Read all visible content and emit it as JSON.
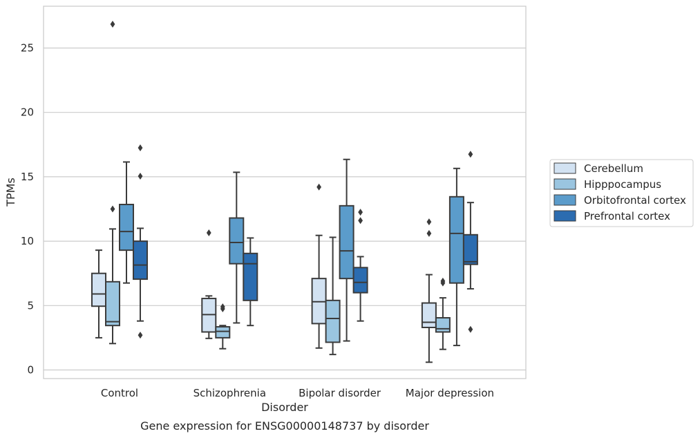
{
  "chart_data": {
    "type": "box",
    "title": "",
    "caption": "Gene expression for ENSG00000148737 by disorder",
    "xlabel": "Disorder",
    "ylabel": "TPMs",
    "ylim": [
      -0.6,
      28
    ],
    "yticks": [
      0,
      5,
      10,
      15,
      20,
      25
    ],
    "grid": "horizontal",
    "legend_position": "right",
    "categories": [
      "Control",
      "Schizophrenia",
      "Bipolar disorder",
      "Major depression"
    ],
    "series": [
      {
        "name": "Cerebellum",
        "color": "#d2e2f2",
        "boxes": [
          {
            "whisker_low": 2.5,
            "q1": 4.95,
            "median": 5.9,
            "q3": 7.5,
            "whisker_high": 9.3,
            "outliers": []
          },
          {
            "whisker_low": 2.45,
            "q1": 2.95,
            "median": 4.3,
            "q3": 5.55,
            "whisker_high": 5.75,
            "outliers": [
              10.65
            ]
          },
          {
            "whisker_low": 1.7,
            "q1": 3.6,
            "median": 5.3,
            "q3": 7.1,
            "whisker_high": 10.45,
            "outliers": [
              14.2
            ]
          },
          {
            "whisker_low": 0.6,
            "q1": 3.3,
            "median": 3.7,
            "q3": 5.2,
            "whisker_high": 7.4,
            "outliers": [
              10.6,
              11.5
            ]
          }
        ]
      },
      {
        "name": "Hipppocampus",
        "color": "#9ac5e0",
        "boxes": [
          {
            "whisker_low": 2.05,
            "q1": 3.45,
            "median": 3.75,
            "q3": 6.85,
            "whisker_high": 10.95,
            "outliers": [
              12.5,
              26.85
            ]
          },
          {
            "whisker_low": 1.65,
            "q1": 2.5,
            "median": 3.0,
            "q3": 3.35,
            "whisker_high": 3.45,
            "outliers": [
              4.75,
              4.9
            ]
          },
          {
            "whisker_low": 1.2,
            "q1": 2.15,
            "median": 4.0,
            "q3": 5.4,
            "whisker_high": 10.3,
            "outliers": []
          },
          {
            "whisker_low": 1.6,
            "q1": 2.95,
            "median": 3.2,
            "q3": 4.05,
            "whisker_high": 5.6,
            "outliers": [
              6.75,
              6.9
            ]
          }
        ]
      },
      {
        "name": "Orbitofrontal cortex",
        "color": "#5b9ccb",
        "boxes": [
          {
            "whisker_low": 6.75,
            "q1": 9.3,
            "median": 10.75,
            "q3": 12.85,
            "whisker_high": 16.15,
            "outliers": []
          },
          {
            "whisker_low": 3.65,
            "q1": 8.25,
            "median": 9.9,
            "q3": 11.8,
            "whisker_high": 15.35,
            "outliers": []
          },
          {
            "whisker_low": 2.25,
            "q1": 7.1,
            "median": 9.25,
            "q3": 12.75,
            "whisker_high": 16.35,
            "outliers": []
          },
          {
            "whisker_low": 1.9,
            "q1": 6.75,
            "median": 10.6,
            "q3": 13.45,
            "whisker_high": 15.65,
            "outliers": []
          }
        ]
      },
      {
        "name": "Prefrontal cortex",
        "color": "#2b6cb0",
        "boxes": [
          {
            "whisker_low": 3.8,
            "q1": 7.05,
            "median": 8.15,
            "q3": 10.0,
            "whisker_high": 11.0,
            "outliers": [
              2.7,
              15.05,
              17.25
            ]
          },
          {
            "whisker_low": 3.45,
            "q1": 5.4,
            "median": 8.25,
            "q3": 9.05,
            "whisker_high": 10.25,
            "outliers": []
          },
          {
            "whisker_low": 3.8,
            "q1": 6.0,
            "median": 6.8,
            "q3": 7.95,
            "whisker_high": 8.8,
            "outliers": [
              11.6,
              12.25
            ]
          },
          {
            "whisker_low": 6.3,
            "q1": 8.2,
            "median": 8.4,
            "q3": 10.5,
            "whisker_high": 13.0,
            "outliers": [
              3.15,
              16.75
            ]
          }
        ]
      }
    ]
  }
}
